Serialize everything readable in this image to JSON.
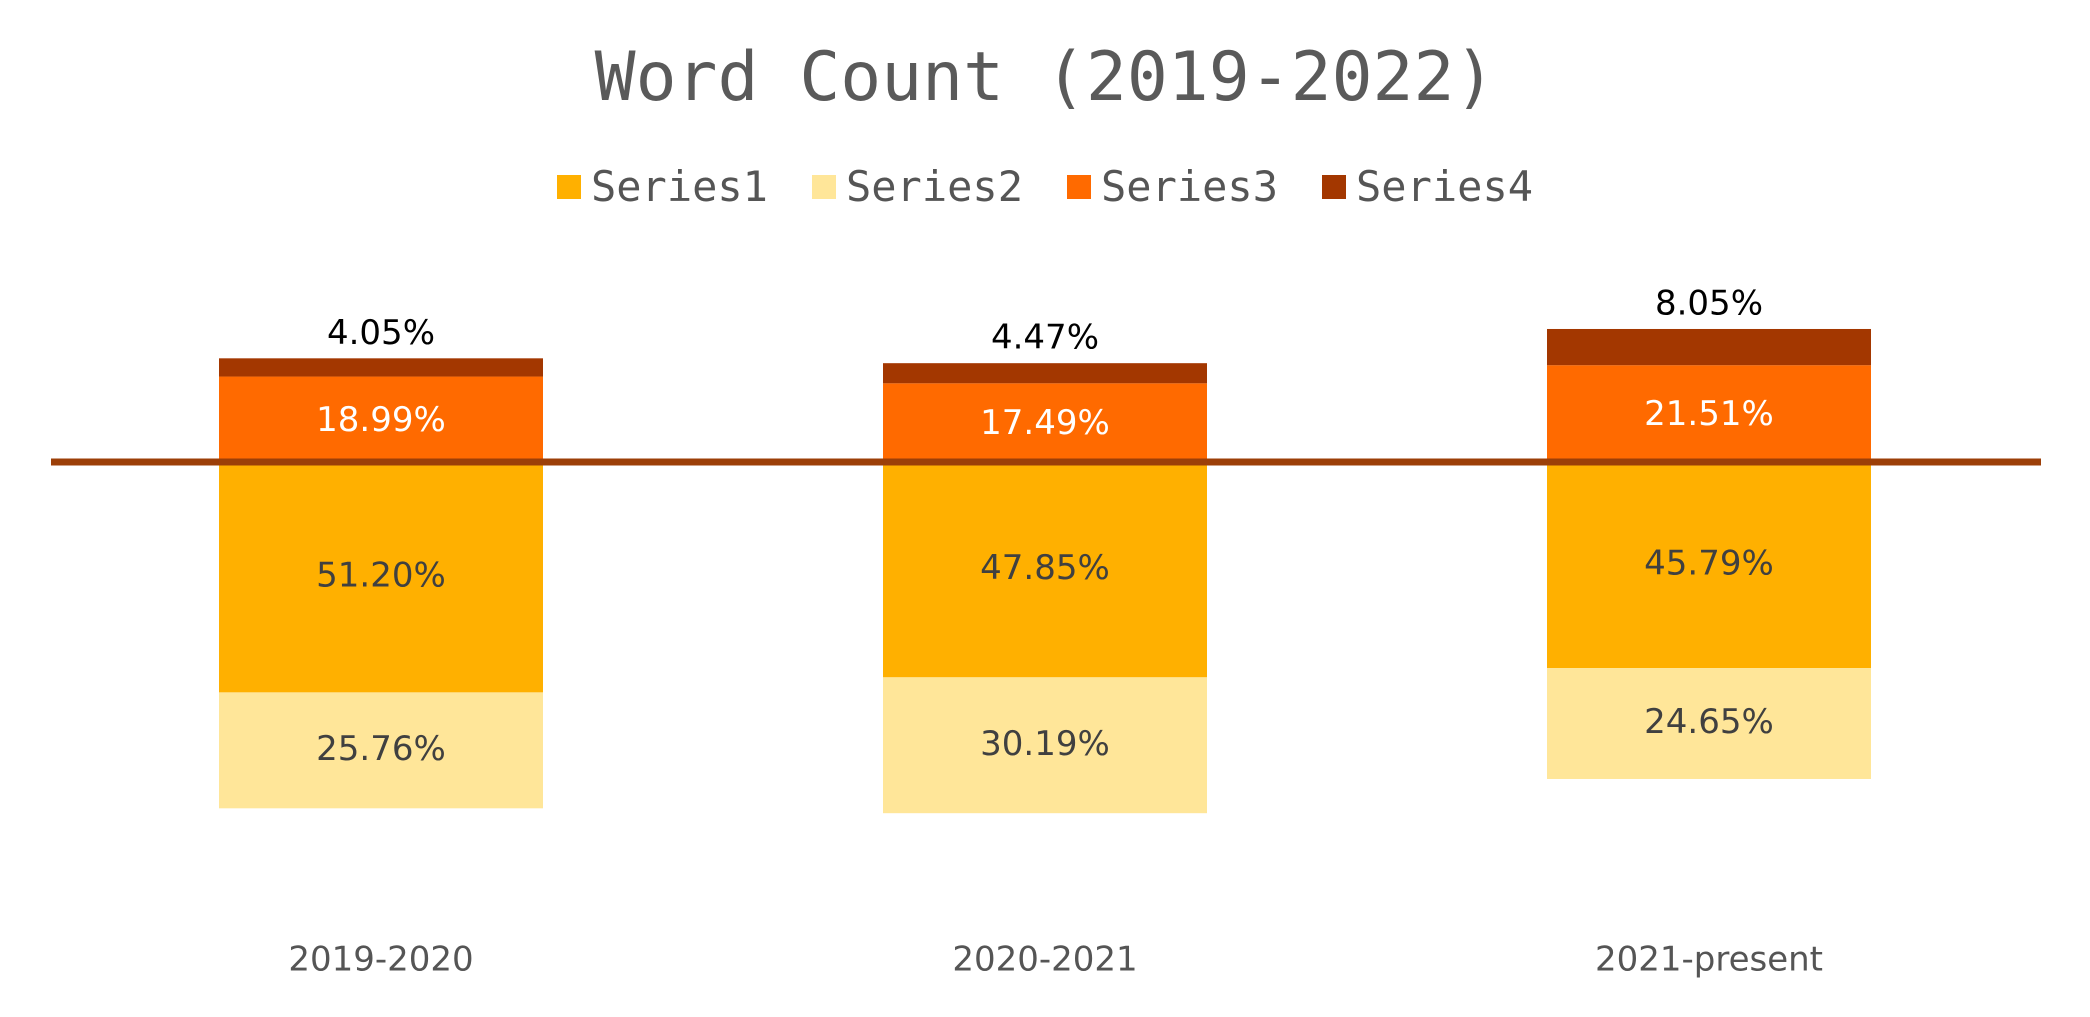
{
  "chart_data": {
    "type": "bar",
    "stacked": true,
    "title": "Word Count (2019-2022)",
    "categories": [
      "2019-2020",
      "2020-2021",
      "2021-present"
    ],
    "series": [
      {
        "name": "Series1",
        "color": "#FFB000",
        "values": [
          51.2,
          47.85,
          45.79
        ],
        "labels": [
          "51.20%",
          "47.85%",
          "45.79%"
        ],
        "label_color": "#404040"
      },
      {
        "name": "Series2",
        "color": "#FFE699",
        "values": [
          25.76,
          30.19,
          24.65
        ],
        "labels": [
          "25.76%",
          "30.19%",
          "24.65%"
        ],
        "label_color": "#404040"
      },
      {
        "name": "Series3",
        "color": "#FF6A00",
        "values": [
          18.99,
          17.49,
          21.51
        ],
        "labels": [
          "18.99%",
          "17.49%",
          "21.51%"
        ],
        "label_color": "#ffffff"
      },
      {
        "name": "Series4",
        "color": "#A33700",
        "values": [
          4.05,
          4.47,
          8.05
        ],
        "labels": [
          "4.05%",
          "4.47%",
          "8.05%"
        ],
        "label_color": "#000000"
      }
    ],
    "reference_line": {
      "color": "#9C3F08"
    },
    "legend_position": "top",
    "grid": false
  }
}
